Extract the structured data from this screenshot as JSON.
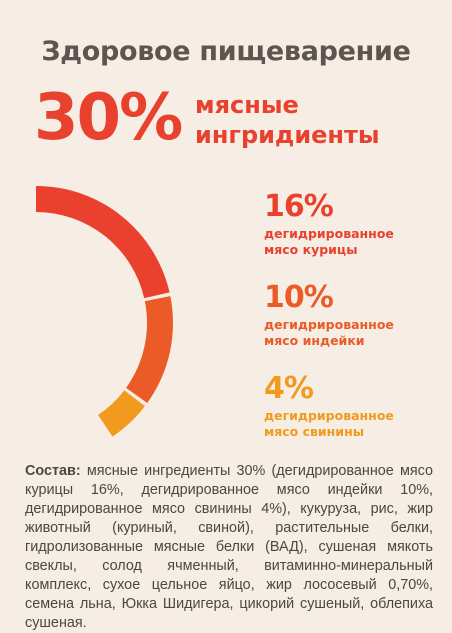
{
  "header": {
    "title": "Здоровое пищеварение",
    "total_percent": "30%",
    "total_label_line1": "мясные",
    "total_label_line2": "ингридиенты"
  },
  "chart_data": {
    "type": "pie",
    "variant": "partial-donut",
    "total_label": "30% мясные ингридиенты",
    "series": [
      {
        "name": "дегидрированное мясо курицы",
        "value": 16,
        "label": "16%",
        "line1": "дегидрированное",
        "line2": "мясо курицы",
        "color": "#e9412e"
      },
      {
        "name": "дегидрированное мясо индейки",
        "value": 10,
        "label": "10%",
        "line1": "дегидрированное",
        "line2": "мясо индейки",
        "color": "#ea5b28"
      },
      {
        "name": "дегидрированное мясо свинины",
        "value": 4,
        "label": "4%",
        "line1": "дегидрированное",
        "line2": "мясо свинины",
        "color": "#f29a1e"
      }
    ]
  },
  "composition": {
    "label": "Состав:",
    "text": " мясные ингредиенты 30% (дегидрированное мясо ку­рицы 16%, дегидрированное мясо индейки 10%, дегидриро­ванное мясо свинины 4%), кукуруза, рис, жир животный (куриный, свиной), растительные белки, гидролизованные мясные белки (ВАД), сушеная мякоть свеклы, солод ячмен­ный, витаминно-минеральный комплекс, сухое цельное яйцо, жир лососевый 0,70%, семена льна, Юкка Шидигера, цикорий сушеный, облепиха сушеная."
  }
}
